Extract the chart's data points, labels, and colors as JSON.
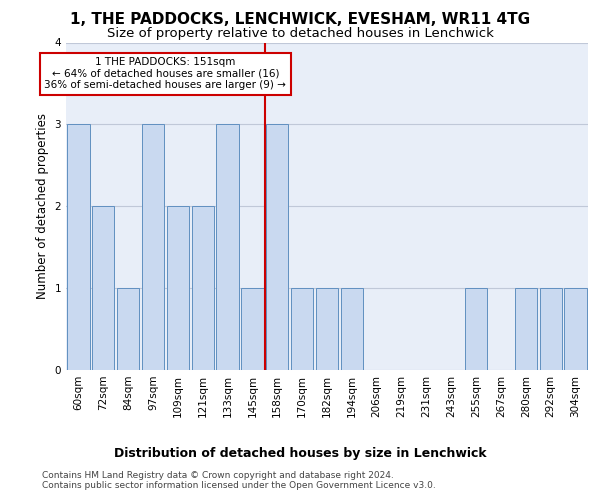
{
  "title": "1, THE PADDOCKS, LENCHWICK, EVESHAM, WR11 4TG",
  "subtitle": "Size of property relative to detached houses in Lenchwick",
  "xlabel": "Distribution of detached houses by size in Lenchwick",
  "ylabel": "Number of detached properties",
  "bar_color": "#c9d9f0",
  "bar_edge_color": "#6090c0",
  "background_color": "#ffffff",
  "plot_bg_color": "#e8eef8",
  "gridcolor": "#c0c8d8",
  "annotation_text": "1 THE PADDOCKS: 151sqm\n← 64% of detached houses are smaller (16)\n36% of semi-detached houses are larger (9) →",
  "vline_color": "#cc0000",
  "annotation_box_color": "#cc0000",
  "bins": [
    "60sqm",
    "72sqm",
    "84sqm",
    "97sqm",
    "109sqm",
    "121sqm",
    "133sqm",
    "145sqm",
    "158sqm",
    "170sqm",
    "182sqm",
    "194sqm",
    "206sqm",
    "219sqm",
    "231sqm",
    "243sqm",
    "255sqm",
    "267sqm",
    "280sqm",
    "292sqm",
    "304sqm"
  ],
  "values": [
    3,
    2,
    1,
    3,
    2,
    2,
    3,
    1,
    3,
    1,
    1,
    1,
    0,
    0,
    0,
    0,
    1,
    0,
    1,
    1,
    1
  ],
  "ylim": [
    0,
    4
  ],
  "yticks": [
    0,
    1,
    2,
    3,
    4
  ],
  "footer_text": "Contains HM Land Registry data © Crown copyright and database right 2024.\nContains public sector information licensed under the Open Government Licence v3.0.",
  "title_fontsize": 11,
  "subtitle_fontsize": 9.5,
  "xlabel_fontsize": 9,
  "ylabel_fontsize": 8.5,
  "tick_fontsize": 7.5,
  "footer_fontsize": 6.5,
  "annotation_fontsize": 7.5
}
